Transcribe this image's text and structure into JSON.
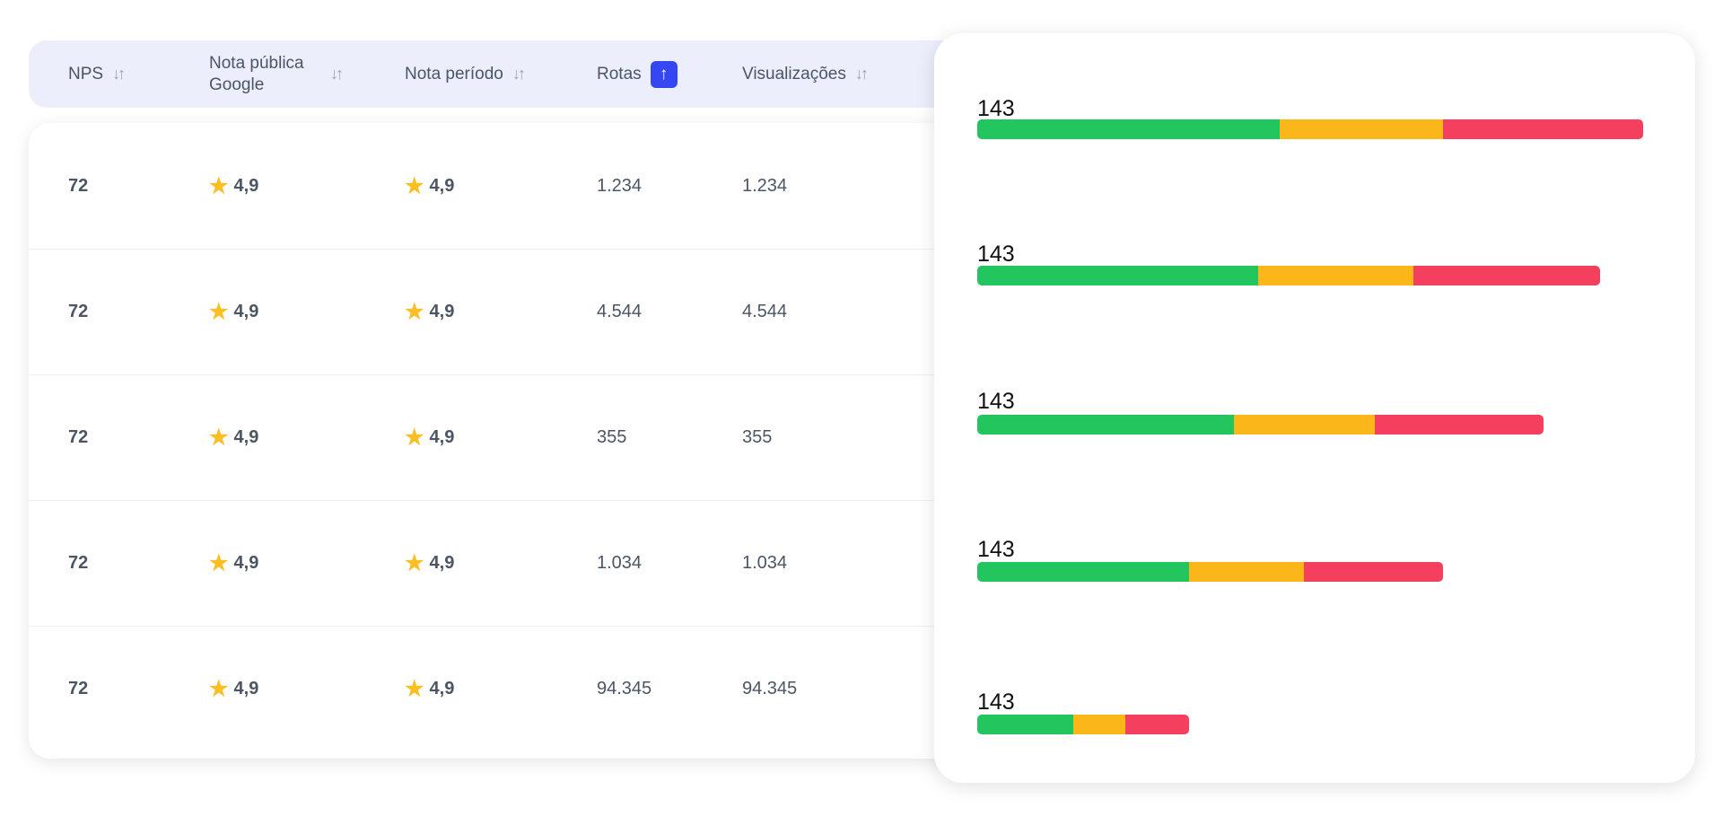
{
  "table": {
    "columns": [
      {
        "label": "NPS",
        "sort": "none"
      },
      {
        "label": "Nota pública Google",
        "sort": "none"
      },
      {
        "label": "Nota período",
        "sort": "none"
      },
      {
        "label": "Rotas",
        "sort": "ascending"
      },
      {
        "label": "Visualizações",
        "sort": "none"
      }
    ],
    "sort_icon": "↓↑",
    "sort_active_icon": "↑",
    "rows": [
      {
        "nps": "72",
        "google": "4,9",
        "periodo": "4,9",
        "rotas": "1.234",
        "visualizacoes": "1.234"
      },
      {
        "nps": "72",
        "google": "4,9",
        "periodo": "4,9",
        "rotas": "4.544",
        "visualizacoes": "4.544"
      },
      {
        "nps": "72",
        "google": "4,9",
        "periodo": "4,9",
        "rotas": "355",
        "visualizacoes": "355"
      },
      {
        "nps": "72",
        "google": "4,9",
        "periodo": "4,9",
        "rotas": "1.034",
        "visualizacoes": "1.034"
      },
      {
        "nps": "72",
        "google": "4,9",
        "periodo": "4,9",
        "rotas": "94.345",
        "visualizacoes": "94.345"
      }
    ],
    "star_icon": "★"
  },
  "bars": {
    "colors": {
      "green": "#22c55e",
      "yellow": "#fbb619",
      "red": "#f43f5e"
    },
    "items": [
      {
        "label": "143",
        "segments_pct_of_full_scale": [
          45.4,
          24.6,
          30.0
        ]
      },
      {
        "label": "143",
        "segments_pct_of_full_scale": [
          42.2,
          23.3,
          28.1
        ]
      },
      {
        "label": "143",
        "segments_pct_of_full_scale": [
          38.6,
          21.1,
          25.4
        ]
      },
      {
        "label": "143",
        "segments_pct_of_full_scale": [
          31.8,
          17.3,
          20.8
        ]
      },
      {
        "label": "143",
        "segments_pct_of_full_scale": [
          14.4,
          7.8,
          9.6
        ]
      }
    ]
  }
}
